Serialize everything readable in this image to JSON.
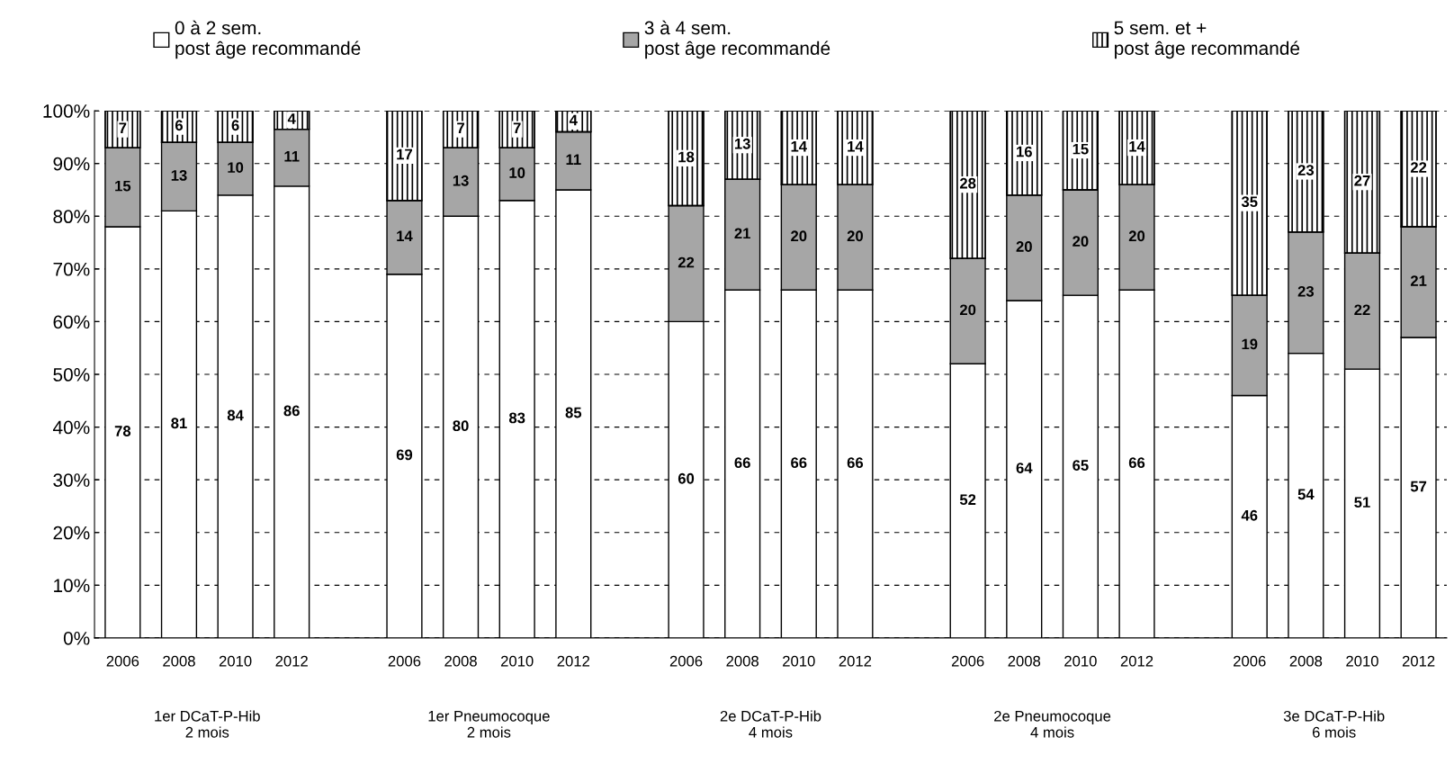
{
  "chart_data": {
    "type": "bar",
    "stacked": true,
    "categories": [
      "2006",
      "2008",
      "2010",
      "2012",
      null,
      "2006",
      "2008",
      "2010",
      "2012",
      null,
      "2006",
      "2008",
      "2010",
      "2012",
      null,
      "2006",
      "2008",
      "2010",
      "2012",
      null,
      "2006",
      "2008",
      "2010",
      "2012"
    ],
    "series": [
      {
        "name": "0 à 2 sem.\npost âge recommandé",
        "color": "#ffffff",
        "values": [
          78,
          81,
          84,
          85.7,
          null,
          69,
          80,
          83,
          85,
          null,
          60,
          66,
          66,
          66,
          null,
          52,
          64,
          65,
          66,
          null,
          46,
          54,
          51,
          57
        ],
        "value_labels": [
          "78",
          "81",
          "84",
          "86",
          null,
          "69",
          "80",
          "83",
          "85",
          null,
          "60",
          "66",
          "66",
          "66",
          null,
          "52",
          "64",
          "65",
          "66",
          null,
          "46",
          "54",
          "51",
          "57"
        ]
      },
      {
        "name": "3 à 4 sem.\npost âge recommandé",
        "color": "#a6a6a6",
        "values": [
          15,
          13,
          10,
          10.8,
          null,
          14,
          13,
          10,
          11,
          null,
          22,
          21,
          20,
          20,
          null,
          20,
          20,
          20,
          20,
          null,
          19,
          23,
          22,
          21
        ],
        "value_labels": [
          "15",
          "13",
          "10",
          "11",
          null,
          "14",
          "13",
          "10",
          "11",
          null,
          "22",
          "21",
          "20",
          "20",
          null,
          "20",
          "20",
          "20",
          "20",
          null,
          "19",
          "23",
          "22",
          "21"
        ]
      },
      {
        "name": "5 sem. et +\npost âge recommandé",
        "color": "#000000",
        "values": [
          7,
          6,
          6,
          3.5,
          null,
          17,
          7,
          7,
          4,
          null,
          18,
          13,
          14,
          14,
          null,
          28,
          16,
          15,
          14,
          null,
          35,
          23,
          27,
          22
        ],
        "value_labels": [
          "7",
          "6",
          "6",
          "4",
          null,
          "17",
          "7",
          "7",
          "4",
          null,
          "18",
          "13",
          "14",
          "14",
          null,
          "28",
          "16",
          "15",
          "14",
          null,
          "35",
          "23",
          "27",
          "22"
        ]
      }
    ],
    "ylim": [
      0,
      100
    ],
    "yticks": [
      {
        "value": 0,
        "label": "0%"
      },
      {
        "value": 10,
        "label": "10%"
      },
      {
        "value": 20,
        "label": "20%"
      },
      {
        "value": 30,
        "label": "30%"
      },
      {
        "value": 40,
        "label": "40%"
      },
      {
        "value": 50,
        "label": "50%"
      },
      {
        "value": 60,
        "label": "60%"
      },
      {
        "value": 70,
        "label": "70%"
      },
      {
        "value": 80,
        "label": "80%"
      },
      {
        "value": 90,
        "label": "90%"
      },
      {
        "value": 100,
        "label": "100%"
      }
    ],
    "grid": "y",
    "legend": "top",
    "annotations": [
      "1er DCaT-P-Hib\n2 mois",
      "1er Pneumocoque\n2 mois",
      "2e DCaT-P-Hib\n4 mois",
      "2e Pneumocoque\n4 mois",
      "3e DCaT-P-Hib\n6 mois"
    ]
  }
}
